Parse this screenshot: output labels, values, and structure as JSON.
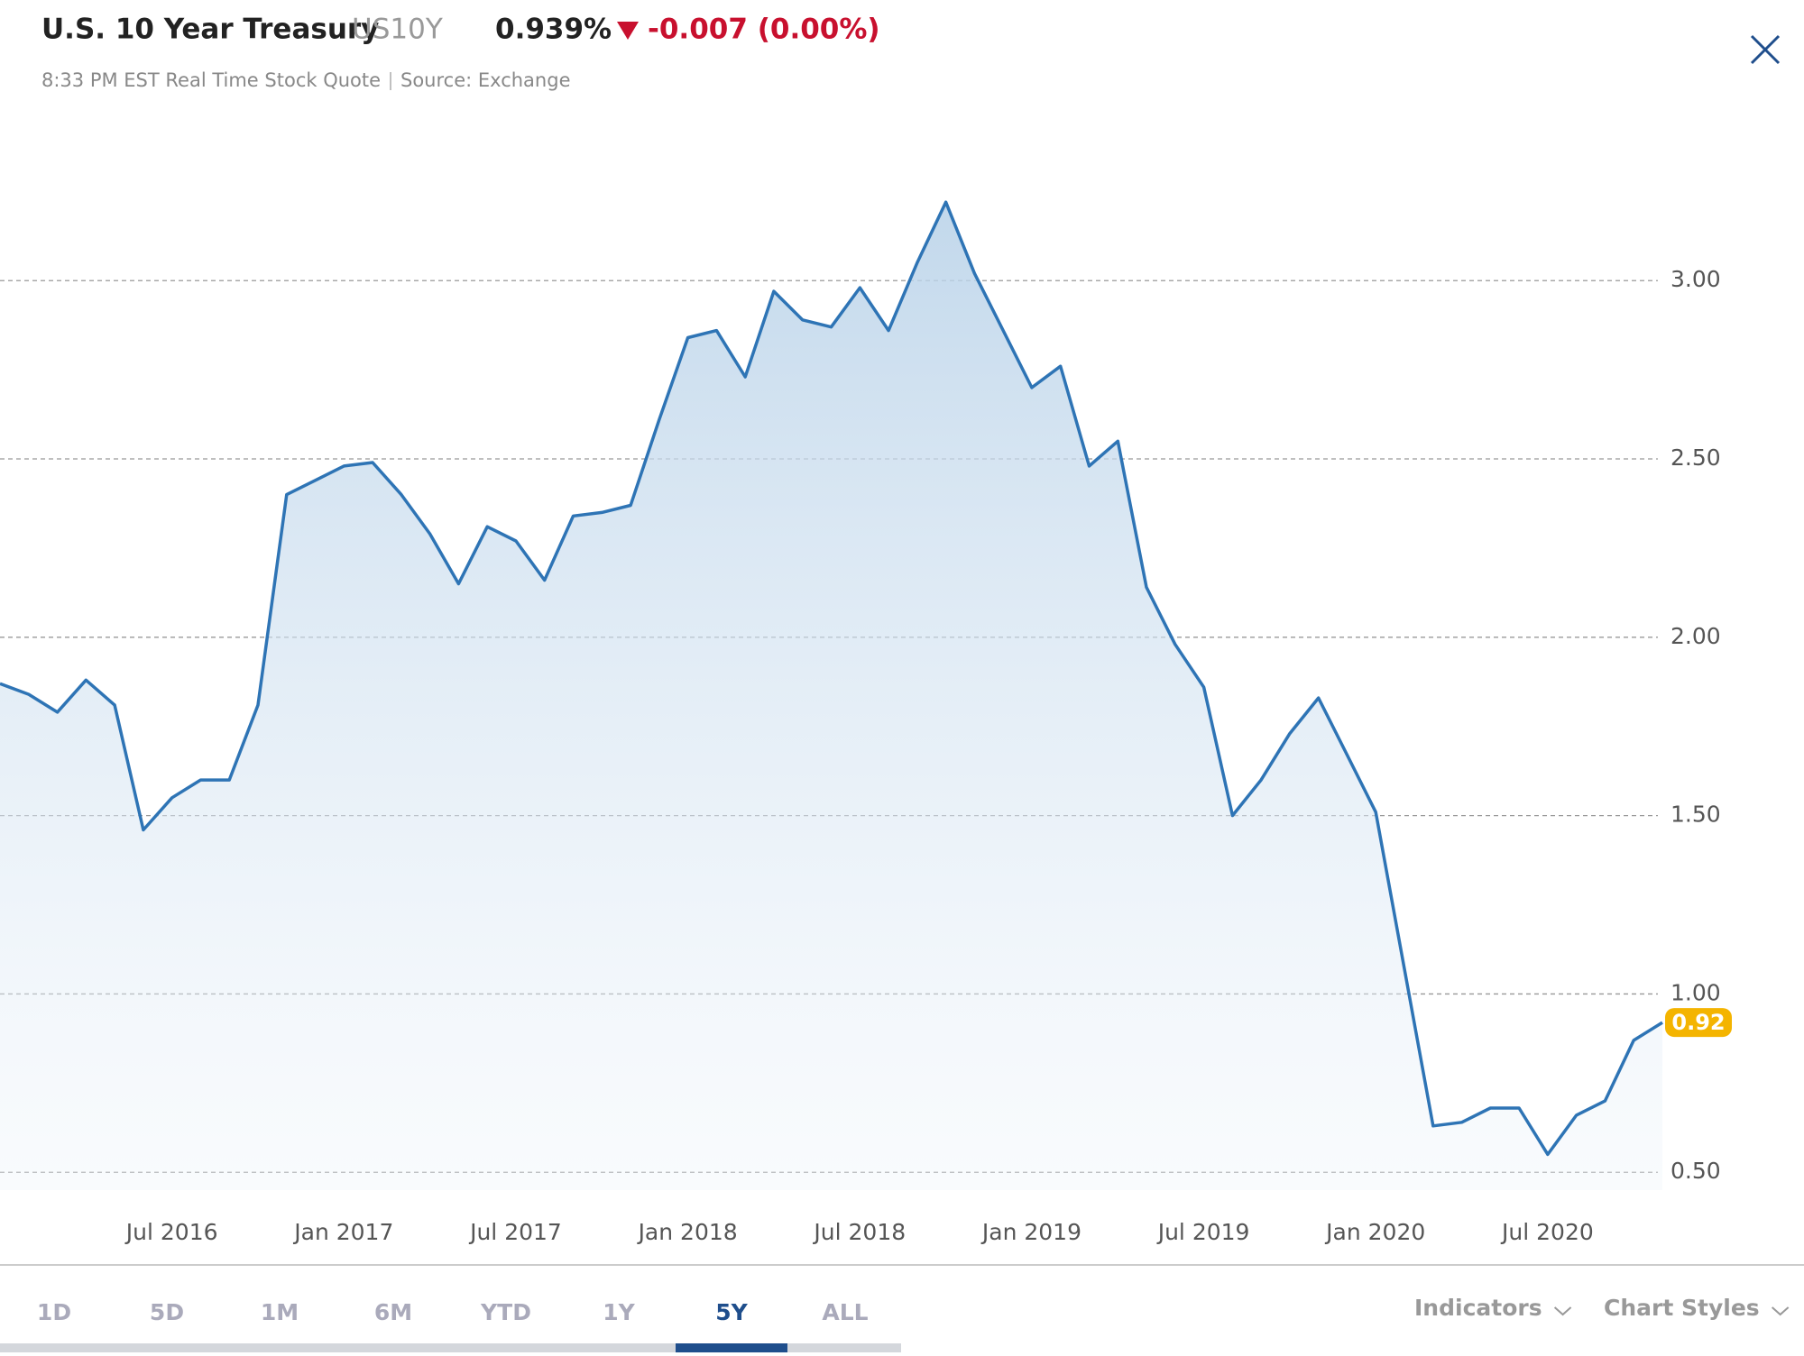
{
  "header": {
    "title": "U.S. 10 Year Treasury",
    "symbol": "US10Y",
    "price": "0.939%",
    "change": "-0.007 (0.00%)",
    "time": "8:33 PM EST Real Time Stock Quote",
    "source": "Source: Exchange"
  },
  "chart_data": {
    "type": "area",
    "x": [
      "2016-01",
      "2016-02",
      "2016-03",
      "2016-04",
      "2016-05",
      "2016-06",
      "2016-07",
      "2016-08",
      "2016-09",
      "2016-10",
      "2016-11",
      "2016-12",
      "2017-01",
      "2017-02",
      "2017-03",
      "2017-04",
      "2017-05",
      "2017-06",
      "2017-07",
      "2017-08",
      "2017-09",
      "2017-10",
      "2017-11",
      "2017-12",
      "2018-01",
      "2018-02",
      "2018-03",
      "2018-04",
      "2018-05",
      "2018-06",
      "2018-07",
      "2018-08",
      "2018-09",
      "2018-10",
      "2018-11",
      "2018-12",
      "2019-01",
      "2019-02",
      "2019-03",
      "2019-04",
      "2019-05",
      "2019-06",
      "2019-07",
      "2019-08",
      "2019-09",
      "2019-10",
      "2019-11",
      "2019-12",
      "2020-01",
      "2020-02",
      "2020-03",
      "2020-04",
      "2020-05",
      "2020-06",
      "2020-07",
      "2020-08",
      "2020-09",
      "2020-10",
      "2020-11"
    ],
    "series": [
      {
        "name": "US10Y",
        "color": "#2e74b5",
        "values": [
          1.87,
          1.84,
          1.79,
          1.88,
          1.81,
          1.46,
          1.55,
          1.6,
          1.6,
          1.81,
          2.4,
          2.44,
          2.48,
          2.49,
          2.4,
          2.29,
          2.15,
          2.31,
          2.27,
          2.16,
          2.34,
          2.35,
          2.37,
          2.61,
          2.84,
          2.86,
          2.73,
          2.97,
          2.89,
          2.87,
          2.98,
          2.86,
          3.05,
          3.22,
          3.02,
          2.86,
          2.7,
          2.76,
          2.48,
          2.55,
          2.14,
          1.98,
          1.86,
          1.5,
          1.6,
          1.73,
          1.83,
          1.67,
          1.51,
          1.07,
          0.63,
          0.64,
          0.68,
          0.68,
          0.55,
          0.66,
          0.7,
          0.87,
          0.92
        ]
      }
    ],
    "xlim": [
      "2016-01",
      "2020-11"
    ],
    "xticks": [
      {
        "value": "2016-07",
        "label": "Jul 2016"
      },
      {
        "value": "2017-01",
        "label": "Jan 2017"
      },
      {
        "value": "2017-07",
        "label": "Jul 2017"
      },
      {
        "value": "2018-01",
        "label": "Jan 2018"
      },
      {
        "value": "2018-07",
        "label": "Jul 2018"
      },
      {
        "value": "2019-01",
        "label": "Jan 2019"
      },
      {
        "value": "2019-07",
        "label": "Jul 2019"
      },
      {
        "value": "2020-01",
        "label": "Jan 2020"
      },
      {
        "value": "2020-07",
        "label": "Jul 2020"
      }
    ],
    "ylim": [
      0.45,
      3.4
    ],
    "yticks": [
      {
        "value": 0.5,
        "label": "0.50"
      },
      {
        "value": 1,
        "label": "1.00"
      },
      {
        "value": 1.5,
        "label": "1.50"
      },
      {
        "value": 2,
        "label": "2.00"
      },
      {
        "value": 2.5,
        "label": "2.50"
      },
      {
        "value": 3,
        "label": "3.00"
      }
    ],
    "grid": true
  },
  "tabs": [
    "1D",
    "5D",
    "1M",
    "6M",
    "YTD",
    "1Y",
    "5Y",
    "ALL"
  ],
  "active_tab": "5Y",
  "controls": [
    "Indicators",
    "Chart Styles"
  ]
}
